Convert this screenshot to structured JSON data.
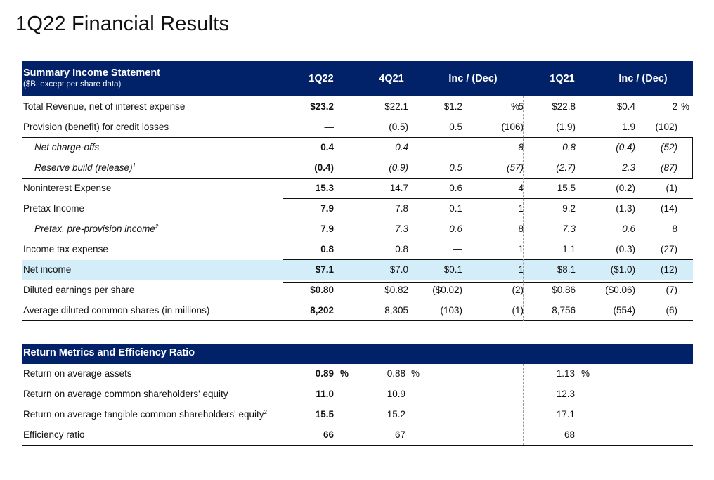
{
  "title": "1Q22 Financial Results",
  "income": {
    "header": {
      "title": "Summary Income Statement",
      "subtitle": "($B, except per share data)",
      "cols": [
        "1Q22",
        "4Q21",
        "Inc / (Dec)",
        "1Q21",
        "Inc / (Dec)"
      ]
    },
    "rows": [
      {
        "label": "Total Revenue, net of interest expense",
        "v": [
          "$23.2",
          "$22.1",
          "$1.2",
          "5",
          "%",
          "$22.8",
          "$0.4",
          "2",
          "%"
        ]
      },
      {
        "label": "Provision (benefit) for credit losses",
        "v": [
          "—",
          "(0.5)",
          "0.5",
          "(106)",
          "",
          "(1.9)",
          "1.9",
          "(102)",
          ""
        ]
      },
      {
        "label": "Net charge-offs",
        "v": [
          "0.4",
          "0.4",
          "—",
          "8",
          "",
          "0.8",
          "(0.4)",
          "(52)",
          ""
        ]
      },
      {
        "label": "Reserve build (release)",
        "sup": "1",
        "v": [
          "(0.4)",
          "(0.9)",
          "0.5",
          "(57)",
          "",
          "(2.7)",
          "2.3",
          "(87)",
          ""
        ]
      },
      {
        "label": "Noninterest Expense",
        "v": [
          "15.3",
          "14.7",
          "0.6",
          "4",
          "",
          "15.5",
          "(0.2)",
          "(1)",
          ""
        ]
      },
      {
        "label": "Pretax Income",
        "v": [
          "7.9",
          "7.8",
          "0.1",
          "1",
          "",
          "9.2",
          "(1.3)",
          "(14)",
          ""
        ]
      },
      {
        "label": "Pretax, pre-provision income",
        "sup": "2",
        "v": [
          "7.9",
          "7.3",
          "0.6",
          "8",
          "",
          "7.3",
          "0.6",
          "8",
          ""
        ]
      },
      {
        "label": "Income tax expense",
        "v": [
          "0.8",
          "0.8",
          "—",
          "1",
          "",
          "1.1",
          "(0.3)",
          "(27)",
          ""
        ]
      },
      {
        "label": "Net income",
        "v": [
          "$7.1",
          "$7.0",
          "$0.1",
          "1",
          "",
          "$8.1",
          "($1.0)",
          "(12)",
          ""
        ]
      },
      {
        "label": "Diluted earnings per share",
        "v": [
          "$0.80",
          "$0.82",
          "($0.02)",
          "(2)",
          "",
          "$0.86",
          "($0.06)",
          "(7)",
          ""
        ]
      },
      {
        "label": "Average diluted common shares (in millions)",
        "v": [
          "8,202",
          "8,305",
          "(103)",
          "(1)",
          "",
          "8,756",
          "(554)",
          "(6)",
          ""
        ]
      }
    ]
  },
  "returns": {
    "header": {
      "title": "Return Metrics and Efficiency Ratio"
    },
    "rows": [
      {
        "label": "Return on average assets",
        "v": [
          "0.89",
          "%",
          "0.88",
          "%",
          "1.13",
          "%"
        ]
      },
      {
        "label": "Return on average common shareholders' equity",
        "v": [
          "11.0",
          "",
          "10.9",
          "",
          "12.3",
          ""
        ]
      },
      {
        "label": "Return on average tangible common shareholders' equity",
        "sup": "2",
        "v": [
          "15.5",
          "",
          "15.2",
          "",
          "17.1",
          ""
        ]
      },
      {
        "label": "Efficiency ratio",
        "v": [
          "66",
          "",
          "67",
          "",
          "68",
          ""
        ]
      }
    ]
  }
}
